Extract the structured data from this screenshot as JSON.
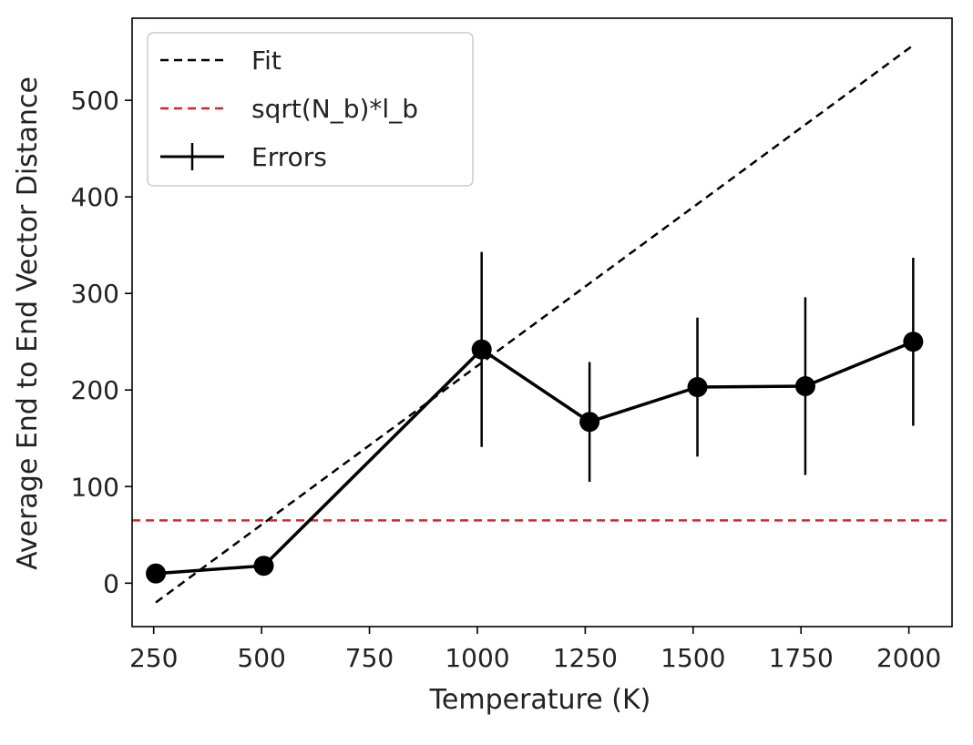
{
  "chart_data": {
    "type": "line",
    "xlabel": "Temperature (K)",
    "ylabel": "Average End to End Vector Distance",
    "xlim": [
      200,
      2100
    ],
    "ylim": [
      -45,
      585
    ],
    "xticks": [
      250,
      500,
      750,
      1000,
      1250,
      1500,
      1750,
      2000
    ],
    "xtick_labels": [
      "250",
      "500",
      "750",
      "1000",
      "1250",
      "1500",
      "1750",
      "2000"
    ],
    "yticks": [
      0,
      100,
      200,
      300,
      400,
      500
    ],
    "ytick_labels": [
      "0",
      "100",
      "200",
      "300",
      "400",
      "500"
    ],
    "grid": false,
    "legend_position": "top-left",
    "series": [
      {
        "name": "Fit",
        "kind": "line",
        "style": "dashed",
        "color": "#000000",
        "x": [
          255,
          2010
        ],
        "y": [
          -20,
          557
        ]
      },
      {
        "name": "sqrt(N_b)*l_b",
        "kind": "hline",
        "style": "dashed",
        "color": "#d62728",
        "x": [
          200,
          2100
        ],
        "y": [
          65,
          65
        ]
      },
      {
        "name": "Errors",
        "kind": "errorbar",
        "style": "solid",
        "color": "#000000",
        "x": [
          255,
          505,
          1010,
          1260,
          1510,
          1760,
          2010
        ],
        "y": [
          10,
          18,
          242,
          167,
          203,
          204,
          250
        ],
        "yerr": [
          0,
          0,
          101,
          62,
          72,
          92,
          87
        ]
      }
    ]
  }
}
